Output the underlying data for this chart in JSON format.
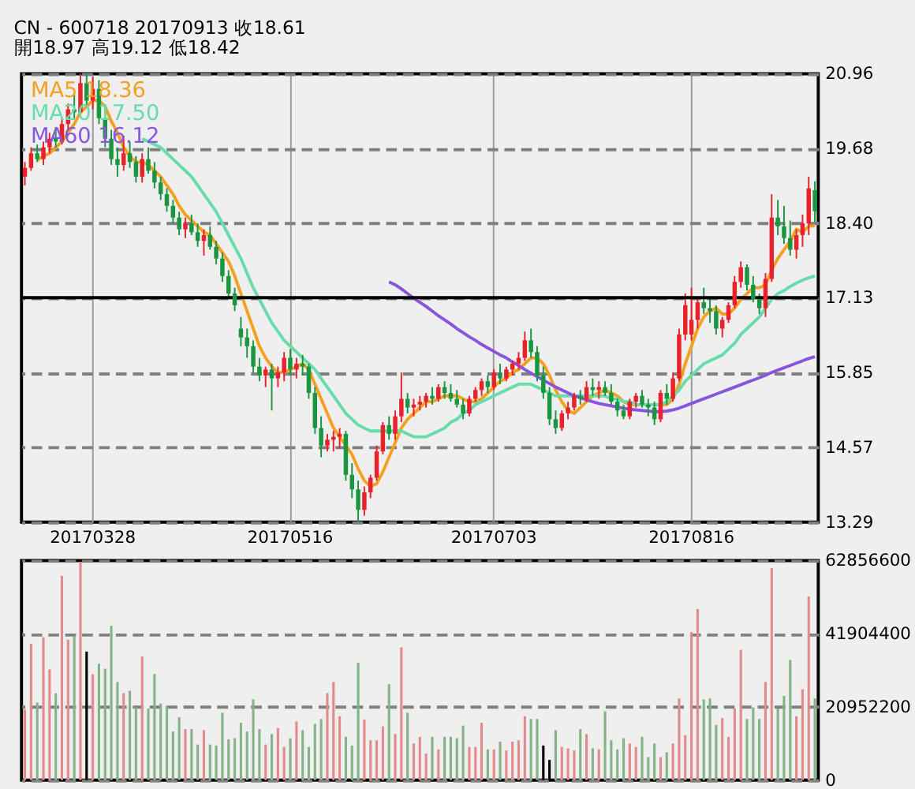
{
  "chart_data": [
    {
      "type": "candlestick",
      "title": "CN - 600718    20170913    收18.61",
      "subtitle": "開18.97    高19.12    低18.42",
      "categories": [
        null,
        null,
        null,
        null,
        null,
        null,
        null,
        null,
        null,
        null,
        null,
        "20170328",
        null,
        null,
        null,
        null,
        null,
        null,
        null,
        null,
        null,
        null,
        null,
        null,
        null,
        null,
        null,
        null,
        null,
        null,
        null,
        null,
        null,
        null,
        null,
        null,
        null,
        null,
        null,
        null,
        null,
        null,
        null,
        "20170516",
        null,
        null,
        null,
        null,
        null,
        null,
        null,
        null,
        null,
        null,
        null,
        null,
        null,
        null,
        null,
        null,
        null,
        null,
        null,
        null,
        null,
        null,
        null,
        null,
        null,
        null,
        null,
        null,
        null,
        null,
        null,
        null,
        "20170703",
        null,
        null,
        null,
        null,
        null,
        null,
        null,
        null,
        null,
        null,
        null,
        null,
        null,
        null,
        null,
        null,
        null,
        null,
        null,
        null,
        null,
        null,
        null,
        null,
        null,
        null,
        null,
        null,
        null,
        null,
        null,
        "20170816",
        null,
        null,
        null,
        null,
        null,
        null,
        null,
        null,
        null,
        null,
        null,
        null,
        null,
        null,
        null,
        null,
        null,
        null,
        null,
        null
      ],
      "ohlc": [
        [
          19.2,
          19.45,
          19.05,
          19.35
        ],
        [
          19.35,
          19.7,
          19.3,
          19.6
        ],
        [
          19.6,
          19.75,
          19.45,
          19.5
        ],
        [
          19.5,
          19.8,
          19.4,
          19.7
        ],
        [
          19.7,
          19.95,
          19.6,
          19.85
        ],
        [
          19.85,
          20.05,
          19.7,
          19.8
        ],
        [
          19.8,
          20.2,
          19.75,
          20.1
        ],
        [
          20.1,
          20.45,
          20.0,
          20.35
        ],
        [
          20.35,
          20.6,
          20.2,
          20.3
        ],
        [
          20.3,
          20.96,
          20.25,
          20.8
        ],
        [
          20.8,
          20.96,
          20.4,
          20.5
        ],
        [
          20.5,
          20.9,
          20.35,
          20.7
        ],
        [
          20.7,
          20.85,
          20.1,
          20.2
        ],
        [
          20.2,
          20.4,
          19.7,
          19.85
        ],
        [
          19.85,
          20.0,
          19.4,
          19.5
        ],
        [
          19.5,
          19.7,
          19.2,
          19.4
        ],
        [
          19.4,
          19.9,
          19.3,
          19.6
        ],
        [
          19.6,
          19.8,
          19.35,
          19.45
        ],
        [
          19.45,
          19.55,
          19.1,
          19.2
        ],
        [
          19.2,
          19.6,
          19.1,
          19.5
        ],
        [
          19.5,
          19.7,
          19.25,
          19.3
        ],
        [
          19.3,
          19.45,
          19.0,
          19.1
        ],
        [
          19.1,
          19.2,
          18.8,
          18.9
        ],
        [
          18.9,
          19.0,
          18.6,
          18.7
        ],
        [
          18.7,
          18.8,
          18.4,
          18.5
        ],
        [
          18.5,
          18.6,
          18.2,
          18.3
        ],
        [
          18.3,
          18.5,
          18.15,
          18.4
        ],
        [
          18.4,
          18.55,
          18.2,
          18.25
        ],
        [
          18.25,
          18.4,
          18.0,
          18.1
        ],
        [
          18.1,
          18.3,
          17.85,
          18.2
        ],
        [
          18.2,
          18.35,
          17.95,
          18.0
        ],
        [
          18.0,
          18.1,
          17.7,
          17.8
        ],
        [
          17.8,
          17.9,
          17.4,
          17.5
        ],
        [
          17.5,
          17.6,
          17.1,
          17.2
        ],
        [
          17.2,
          17.3,
          16.9,
          17.0
        ],
        [
          16.6,
          16.8,
          16.3,
          16.45
        ],
        [
          16.45,
          16.6,
          16.1,
          16.3
        ],
        [
          16.3,
          16.4,
          15.85,
          15.95
        ],
        [
          15.95,
          16.1,
          15.7,
          15.8
        ],
        [
          15.8,
          15.95,
          15.6,
          15.9
        ],
        [
          15.9,
          16.0,
          15.2,
          15.75
        ],
        [
          15.75,
          15.95,
          15.6,
          15.85
        ],
        [
          15.85,
          16.2,
          15.7,
          16.1
        ],
        [
          16.1,
          16.25,
          15.8,
          15.9
        ],
        [
          15.9,
          16.1,
          15.75,
          16.0
        ],
        [
          16.0,
          16.15,
          15.8,
          15.95
        ],
        [
          15.95,
          16.0,
          15.4,
          15.5
        ],
        [
          15.5,
          15.6,
          14.8,
          14.9
        ],
        [
          14.9,
          15.1,
          14.4,
          14.6
        ],
        [
          14.6,
          14.8,
          14.5,
          14.7
        ],
        [
          14.7,
          14.85,
          14.5,
          14.75
        ],
        [
          14.75,
          14.9,
          14.55,
          14.8
        ],
        [
          14.8,
          14.85,
          14.0,
          14.1
        ],
        [
          14.1,
          14.3,
          13.7,
          13.85
        ],
        [
          13.85,
          14.0,
          13.29,
          13.5
        ],
        [
          13.5,
          13.9,
          13.4,
          13.8
        ],
        [
          13.8,
          14.1,
          13.7,
          14.05
        ],
        [
          14.05,
          14.6,
          14.0,
          14.5
        ],
        [
          14.5,
          15.0,
          14.45,
          14.95
        ],
        [
          14.95,
          15.1,
          14.7,
          14.8
        ],
        [
          14.8,
          15.2,
          14.7,
          15.1
        ],
        [
          15.1,
          15.85,
          15.0,
          15.4
        ],
        [
          15.4,
          15.5,
          15.15,
          15.25
        ],
        [
          15.25,
          15.4,
          15.1,
          15.3
        ],
        [
          15.3,
          15.45,
          15.2,
          15.35
        ],
        [
          15.35,
          15.5,
          15.25,
          15.45
        ],
        [
          15.45,
          15.6,
          15.3,
          15.4
        ],
        [
          15.4,
          15.65,
          15.35,
          15.6
        ],
        [
          15.6,
          15.7,
          15.4,
          15.5
        ],
        [
          15.5,
          15.65,
          15.35,
          15.4
        ],
        [
          15.4,
          15.55,
          15.25,
          15.3
        ],
        [
          15.3,
          15.4,
          15.05,
          15.15
        ],
        [
          15.15,
          15.45,
          15.1,
          15.4
        ],
        [
          15.4,
          15.6,
          15.35,
          15.55
        ],
        [
          15.55,
          15.75,
          15.45,
          15.7
        ],
        [
          15.7,
          15.8,
          15.5,
          15.6
        ],
        [
          15.6,
          15.9,
          15.55,
          15.85
        ],
        [
          15.85,
          16.0,
          15.65,
          15.75
        ],
        [
          15.75,
          15.95,
          15.7,
          15.9
        ],
        [
          15.9,
          16.05,
          15.8,
          16.0
        ],
        [
          16.0,
          16.2,
          15.9,
          16.1
        ],
        [
          16.1,
          16.55,
          16.05,
          16.4
        ],
        [
          16.4,
          16.6,
          16.1,
          16.2
        ],
        [
          16.2,
          16.3,
          15.7,
          15.8
        ],
        [
          15.8,
          15.95,
          15.4,
          15.5
        ],
        [
          15.5,
          15.6,
          14.95,
          15.05
        ],
        [
          15.05,
          15.2,
          14.8,
          14.9
        ],
        [
          14.9,
          15.2,
          14.85,
          15.15
        ],
        [
          15.15,
          15.35,
          15.05,
          15.25
        ],
        [
          15.25,
          15.5,
          15.2,
          15.45
        ],
        [
          15.45,
          15.55,
          15.3,
          15.4
        ],
        [
          15.4,
          15.7,
          15.35,
          15.6
        ],
        [
          15.6,
          15.75,
          15.45,
          15.55
        ],
        [
          15.55,
          15.7,
          15.4,
          15.6
        ],
        [
          15.6,
          15.7,
          15.45,
          15.5
        ],
        [
          15.5,
          15.65,
          15.3,
          15.35
        ],
        [
          15.35,
          15.4,
          15.1,
          15.2
        ],
        [
          15.2,
          15.3,
          15.05,
          15.1
        ],
        [
          15.1,
          15.4,
          15.05,
          15.35
        ],
        [
          15.35,
          15.5,
          15.25,
          15.45
        ],
        [
          15.45,
          15.55,
          15.25,
          15.3
        ],
        [
          15.3,
          15.4,
          15.1,
          15.25
        ],
        [
          15.25,
          15.35,
          14.95,
          15.05
        ],
        [
          15.05,
          15.55,
          15.0,
          15.5
        ],
        [
          15.5,
          15.65,
          15.3,
          15.4
        ],
        [
          15.4,
          15.85,
          15.35,
          15.75
        ],
        [
          15.75,
          16.6,
          15.7,
          16.5
        ],
        [
          16.5,
          17.2,
          16.4,
          17.0
        ],
        [
          16.5,
          17.3,
          16.4,
          16.75
        ],
        [
          16.75,
          17.1,
          16.6,
          17.05
        ],
        [
          17.05,
          17.3,
          16.85,
          16.95
        ],
        [
          16.95,
          17.1,
          16.7,
          16.9
        ],
        [
          16.9,
          17.0,
          16.5,
          16.6
        ],
        [
          16.6,
          16.8,
          16.45,
          16.75
        ],
        [
          16.75,
          17.05,
          16.7,
          17.0
        ],
        [
          17.0,
          17.5,
          16.95,
          17.4
        ],
        [
          17.4,
          17.75,
          17.3,
          17.65
        ],
        [
          17.65,
          17.7,
          17.25,
          17.35
        ],
        [
          17.35,
          17.5,
          17.05,
          17.1
        ],
        [
          17.1,
          17.2,
          16.85,
          16.95
        ],
        [
          16.95,
          17.55,
          16.8,
          17.45
        ],
        [
          17.45,
          18.9,
          17.4,
          18.5
        ],
        [
          18.5,
          18.8,
          18.2,
          18.35
        ],
        [
          18.35,
          18.7,
          18.05,
          18.15
        ],
        [
          18.15,
          18.45,
          17.85,
          17.95
        ],
        [
          17.95,
          18.3,
          17.8,
          18.2
        ],
        [
          18.2,
          18.55,
          18.0,
          18.4
        ],
        [
          18.4,
          19.2,
          18.2,
          19.0
        ],
        [
          18.97,
          19.12,
          18.42,
          18.61
        ]
      ],
      "colors": [
        "#e8212a",
        "#e8212a",
        "#1a9641",
        "#e8212a",
        "#e8212a",
        "#1a9641",
        "#e8212a",
        "#e8212a",
        "#1a9641",
        "#e8212a",
        "#1a9641",
        "#e8212a",
        "#1a9641",
        "#1a9641",
        "#1a9641",
        "#1a9641",
        "#e8212a",
        "#1a9641",
        "#1a9641",
        "#e8212a",
        "#1a9641",
        "#1a9641",
        "#1a9641",
        "#1a9641",
        "#1a9641",
        "#1a9641",
        "#e8212a",
        "#1a9641",
        "#1a9641",
        "#e8212a",
        "#1a9641",
        "#1a9641",
        "#1a9641",
        "#1a9641",
        "#1a9641",
        "#1a9641",
        "#1a9641",
        "#1a9641",
        "#1a9641",
        "#e8212a",
        "#1a9641",
        "#e8212a",
        "#e8212a",
        "#1a9641",
        "#e8212a",
        "#1a9641",
        "#1a9641",
        "#1a9641",
        "#1a9641",
        "#e8212a",
        "#e8212a",
        "#e8212a",
        "#1a9641",
        "#1a9641",
        "#1a9641",
        "#e8212a",
        "#e8212a",
        "#e8212a",
        "#e8212a",
        "#1a9641",
        "#e8212a",
        "#e8212a",
        "#1a9641",
        "#e8212a",
        "#e8212a",
        "#e8212a",
        "#1a9641",
        "#e8212a",
        "#1a9641",
        "#1a9641",
        "#1a9641",
        "#1a9641",
        "#e8212a",
        "#e8212a",
        "#e8212a",
        "#1a9641",
        "#e8212a",
        "#1a9641",
        "#e8212a",
        "#e8212a",
        "#e8212a",
        "#e8212a",
        "#1a9641",
        "#1a9641",
        "#1a9641",
        "#1a9641",
        "#1a9641",
        "#e8212a",
        "#e8212a",
        "#e8212a",
        "#1a9641",
        "#e8212a",
        "#1a9641",
        "#e8212a",
        "#1a9641",
        "#1a9641",
        "#1a9641",
        "#1a9641",
        "#e8212a",
        "#e8212a",
        "#1a9641",
        "#1a9641",
        "#1a9641",
        "#e8212a",
        "#1a9641",
        "#e8212a",
        "#e8212a",
        "#e8212a",
        "#e8212a",
        "#e8212a",
        "#1a9641",
        "#1a9641",
        "#1a9641",
        "#e8212a",
        "#e8212a",
        "#e8212a",
        "#e8212a",
        "#1a9641",
        "#1a9641",
        "#1a9641",
        "#e8212a",
        "#e8212a",
        "#1a9641",
        "#1a9641",
        "#1a9641",
        "#e8212a",
        "#e8212a",
        "#e8212a",
        "#1a9641"
      ],
      "series": [
        {
          "name": "MA5 18.36",
          "type": "line",
          "color": "#f5a020",
          "values": [
            null,
            null,
            19.48,
            19.55,
            19.6,
            19.7,
            19.8,
            19.95,
            20.1,
            20.3,
            20.4,
            20.5,
            20.5,
            20.4,
            20.15,
            19.95,
            19.7,
            19.55,
            19.45,
            19.45,
            19.4,
            19.3,
            19.2,
            19.05,
            18.9,
            18.7,
            18.55,
            18.45,
            18.35,
            18.25,
            18.2,
            18.05,
            17.9,
            17.75,
            17.5,
            17.2,
            16.9,
            16.6,
            16.3,
            16.1,
            15.95,
            15.85,
            15.85,
            15.9,
            15.95,
            16.0,
            15.9,
            15.65,
            15.4,
            15.15,
            14.9,
            14.75,
            14.6,
            14.45,
            14.2,
            14.0,
            13.9,
            13.95,
            14.15,
            14.4,
            14.65,
            14.9,
            15.05,
            15.15,
            15.25,
            15.35,
            15.35,
            15.4,
            15.45,
            15.45,
            15.45,
            15.4,
            15.35,
            15.35,
            15.4,
            15.5,
            15.6,
            15.7,
            15.75,
            15.85,
            15.9,
            16.0,
            16.1,
            16.1,
            16.0,
            15.8,
            15.55,
            15.35,
            15.2,
            15.15,
            15.25,
            15.35,
            15.45,
            15.5,
            15.55,
            15.5,
            15.45,
            15.35,
            15.3,
            15.3,
            15.3,
            15.3,
            15.3,
            15.3,
            15.3,
            15.4,
            15.65,
            16.0,
            16.3,
            16.6,
            16.8,
            16.9,
            16.95,
            16.85,
            16.85,
            16.95,
            17.1,
            17.2,
            17.3,
            17.3,
            17.35,
            17.6,
            17.8,
            17.95,
            18.1,
            18.3,
            18.25,
            18.35,
            18.36
          ]
        },
        {
          "name": "MA20 17.50",
          "type": "line",
          "color": "#66ddaa",
          "values": [
            null,
            null,
            null,
            null,
            null,
            null,
            null,
            null,
            null,
            null,
            null,
            null,
            null,
            null,
            null,
            null,
            null,
            null,
            null,
            19.85,
            19.8,
            19.75,
            19.7,
            19.6,
            19.5,
            19.4,
            19.3,
            19.2,
            19.05,
            18.9,
            18.75,
            18.6,
            18.4,
            18.2,
            18.0,
            17.8,
            17.55,
            17.3,
            17.1,
            16.9,
            16.7,
            16.55,
            16.4,
            16.3,
            16.2,
            16.1,
            16.0,
            15.9,
            15.75,
            15.6,
            15.45,
            15.3,
            15.15,
            15.05,
            14.95,
            14.9,
            14.85,
            14.85,
            14.85,
            14.85,
            14.85,
            14.85,
            14.8,
            14.75,
            14.75,
            14.75,
            14.8,
            14.85,
            14.9,
            15.0,
            15.05,
            15.15,
            15.2,
            15.3,
            15.35,
            15.4,
            15.45,
            15.5,
            15.55,
            15.6,
            15.65,
            15.65,
            15.65,
            15.6,
            15.55,
            15.5,
            15.45,
            15.45,
            15.45,
            15.45,
            15.45,
            15.45,
            15.45,
            15.45,
            15.45,
            15.4,
            15.4,
            15.35,
            15.35,
            15.3,
            15.3,
            15.3,
            15.3,
            15.3,
            15.35,
            15.45,
            15.55,
            15.7,
            15.8,
            15.9,
            16.0,
            16.05,
            16.1,
            16.15,
            16.25,
            16.35,
            16.5,
            16.6,
            16.7,
            16.8,
            16.95,
            17.1,
            17.2,
            17.25,
            17.32,
            17.38,
            17.43,
            17.47,
            17.5
          ]
        },
        {
          "name": "MA60 16.12",
          "type": "line",
          "color": "#8855dd",
          "values": [
            null,
            null,
            null,
            null,
            null,
            null,
            null,
            null,
            null,
            null,
            null,
            null,
            null,
            null,
            null,
            null,
            null,
            null,
            null,
            null,
            null,
            null,
            null,
            null,
            null,
            null,
            null,
            null,
            null,
            null,
            null,
            null,
            null,
            null,
            null,
            null,
            null,
            null,
            null,
            null,
            null,
            null,
            null,
            null,
            null,
            null,
            null,
            null,
            null,
            null,
            null,
            null,
            null,
            null,
            null,
            null,
            null,
            null,
            null,
            17.4,
            17.35,
            17.28,
            17.2,
            17.12,
            17.05,
            16.98,
            16.9,
            16.82,
            16.75,
            16.68,
            16.6,
            16.53,
            16.46,
            16.4,
            16.33,
            16.27,
            16.21,
            16.15,
            16.1,
            16.03,
            15.97,
            15.9,
            15.84,
            15.78,
            15.72,
            15.66,
            15.6,
            15.55,
            15.5,
            15.45,
            15.42,
            15.38,
            15.35,
            15.32,
            15.3,
            15.28,
            15.26,
            15.24,
            15.22,
            15.21,
            15.2,
            15.19,
            15.18,
            15.18,
            15.19,
            15.21,
            15.24,
            15.28,
            15.32,
            15.36,
            15.4,
            15.44,
            15.48,
            15.52,
            15.56,
            15.6,
            15.64,
            15.68,
            15.72,
            15.76,
            15.8,
            15.85,
            15.89,
            15.93,
            15.97,
            16.01,
            16.05,
            16.09,
            16.12
          ]
        }
      ],
      "ylim": [
        13.29,
        20.96
      ],
      "yticks": [
        13.29,
        14.57,
        15.85,
        17.13,
        {
          "value": 18.4,
          "label": "18.40"
        },
        19.68,
        20.96
      ],
      "grid": true,
      "legend": "top left",
      "ref_lines": [
        {
          "axis": "y",
          "value": 17.13,
          "color": "#000000"
        }
      ]
    },
    {
      "type": "bar",
      "categories": [
        null,
        null,
        null,
        null,
        null,
        null,
        null,
        null,
        null,
        null,
        null,
        null,
        null,
        null,
        null,
        null,
        null,
        null,
        null,
        null,
        null,
        null,
        null,
        null,
        null,
        null,
        null,
        null,
        null,
        null,
        null,
        null,
        null,
        null,
        null,
        null,
        null,
        null,
        null,
        null,
        null,
        null,
        null,
        null,
        null,
        null,
        null,
        null,
        null,
        null,
        null,
        null,
        null,
        null,
        null,
        null,
        null,
        null,
        null,
        null,
        null,
        null,
        null,
        null,
        null,
        null,
        null,
        null,
        null,
        null,
        null,
        null,
        null,
        null,
        null,
        null,
        null,
        null,
        null,
        null,
        null,
        null,
        null,
        null,
        null,
        null,
        null,
        null,
        null,
        null,
        null,
        null,
        null,
        null,
        null,
        null,
        null,
        null,
        null,
        null,
        null,
        null,
        null,
        null,
        null,
        null,
        null,
        null,
        null,
        null,
        null,
        null,
        null,
        null,
        null,
        null,
        null,
        null,
        null,
        null,
        null,
        null,
        null,
        null,
        null,
        null,
        null,
        null,
        null
      ],
      "values": [
        20200000,
        39000000,
        22200000,
        40900000,
        31700000,
        24900000,
        58500000,
        40200000,
        41200000,
        62500000,
        36800000,
        30300000,
        33300000,
        31900000,
        44200000,
        28100000,
        24900000,
        25600000,
        20800000,
        35400000,
        20500000,
        30400000,
        21900000,
        21200000,
        13900000,
        18000000,
        14600000,
        14600000,
        10200000,
        14300000,
        10200000,
        9900000,
        19300000,
        11700000,
        12000000,
        16400000,
        13900000,
        23100000,
        14600000,
        10200000,
        13200000,
        14900000,
        9500000,
        12000000,
        16800000,
        14300000,
        9500000,
        16100000,
        17500000,
        24900000,
        28100000,
        18300000,
        12400000,
        9900000,
        33600000,
        17300000,
        11400000,
        11400000,
        15400000,
        27500000,
        13200000,
        38000000,
        19300000,
        10500000,
        12400000,
        7600000,
        12400000,
        8800000,
        12400000,
        12400000,
        12000000,
        15600000,
        9500000,
        9500000,
        16400000,
        8800000,
        8800000,
        11000000,
        8500000,
        11000000,
        11400000,
        18300000,
        17500000,
        17500000,
        9900000,
        5800000,
        14300000,
        9500000,
        9100000,
        8500000,
        14600000,
        13200000,
        9100000,
        8800000,
        19700000,
        11400000,
        8800000,
        12000000,
        10500000,
        9500000,
        12400000,
        6600000,
        10500000,
        6600000,
        8000000,
        10500000,
        23400000,
        12900000,
        42400000,
        49000000,
        23100000,
        23400000,
        15800000,
        17800000,
        12400000,
        20500000,
        37300000,
        17500000,
        20800000,
        17500000,
        28100000,
        60700000,
        20500000,
        24100000,
        34400000,
        18300000,
        26000000,
        52600000,
        23400000
      ],
      "colors": [
        "#e48a8a",
        "#e48a8a",
        "#86b386",
        "#e48a8a",
        "#e48a8a",
        "#86b386",
        "#e48a8a",
        "#e48a8a",
        "#86b386",
        "#e48a8a",
        "#000000",
        "#e48a8a",
        "#86b386",
        "#86b386",
        "#86b386",
        "#86b386",
        "#e48a8a",
        "#86b386",
        "#86b386",
        "#e48a8a",
        "#86b386",
        "#86b386",
        "#86b386",
        "#86b386",
        "#86b386",
        "#86b386",
        "#e48a8a",
        "#86b386",
        "#86b386",
        "#e48a8a",
        "#86b386",
        "#86b386",
        "#86b386",
        "#86b386",
        "#86b386",
        "#86b386",
        "#86b386",
        "#86b386",
        "#86b386",
        "#e48a8a",
        "#86b386",
        "#e48a8a",
        "#e48a8a",
        "#86b386",
        "#e48a8a",
        "#86b386",
        "#86b386",
        "#86b386",
        "#86b386",
        "#e48a8a",
        "#e48a8a",
        "#e48a8a",
        "#86b386",
        "#86b386",
        "#86b386",
        "#e48a8a",
        "#e48a8a",
        "#e48a8a",
        "#e48a8a",
        "#86b386",
        "#e48a8a",
        "#e48a8a",
        "#86b386",
        "#e48a8a",
        "#e48a8a",
        "#e48a8a",
        "#86b386",
        "#e48a8a",
        "#86b386",
        "#86b386",
        "#86b386",
        "#86b386",
        "#e48a8a",
        "#e48a8a",
        "#e48a8a",
        "#86b386",
        "#e48a8a",
        "#86b386",
        "#e48a8a",
        "#e48a8a",
        "#e48a8a",
        "#e48a8a",
        "#86b386",
        "#86b386",
        "#000000",
        "#000000",
        "#86b386",
        "#e48a8a",
        "#e48a8a",
        "#e48a8a",
        "#86b386",
        "#e48a8a",
        "#86b386",
        "#e48a8a",
        "#86b386",
        "#86b386",
        "#86b386",
        "#86b386",
        "#e48a8a",
        "#e48a8a",
        "#86b386",
        "#86b386",
        "#86b386",
        "#e48a8a",
        "#86b386",
        "#e48a8a",
        "#e48a8a",
        "#e48a8a",
        "#e48a8a",
        "#e48a8a",
        "#86b386",
        "#86b386",
        "#86b386",
        "#e48a8a",
        "#e48a8a",
        "#e48a8a",
        "#e48a8a",
        "#86b386",
        "#86b386",
        "#86b386",
        "#e48a8a",
        "#e48a8a",
        "#86b386",
        "#86b386",
        "#86b386",
        "#e48a8a",
        "#e48a8a",
        "#e48a8a",
        "#86b386"
      ],
      "ylim": [
        0,
        62856600
      ],
      "yticks": [
        0,
        20952200,
        41904400,
        62856600
      ],
      "grid": "y",
      "tick_labels": "y"
    }
  ]
}
